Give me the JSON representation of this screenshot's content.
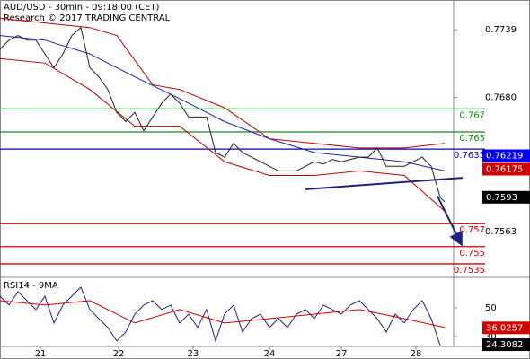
{
  "header": {
    "title": "AUD/USD - 30min - 09:18:00 (CET)",
    "subtitle": "Research © 2017 TRADING CENTRAL"
  },
  "chart_data": [
    {
      "type": "line",
      "xlim": [
        0,
        252.5
      ],
      "xticks": [
        {
          "value": 22.5,
          "label": "21"
        },
        {
          "value": 66,
          "label": "22"
        },
        {
          "value": 107.5,
          "label": "23"
        },
        {
          "value": 150,
          "label": "24"
        },
        {
          "value": 190,
          "label": "27"
        },
        {
          "value": 231.5,
          "label": "28"
        }
      ],
      "ylim": [
        0.7524,
        0.7765
      ],
      "yticks": [
        0.7739,
        {
          "value": 0.768,
          "label": "0.7680"
        },
        0.7563
      ],
      "series": [
        {
          "color": "#c00000",
          "x": [
            0,
            25,
            50,
            65,
            85,
            100,
            125,
            150,
            175,
            200,
            225,
            247.5
          ],
          "values": [
            0.7749,
            0.7745,
            0.7741,
            0.7734,
            0.7691,
            0.7687,
            0.7671,
            0.7644,
            0.764,
            0.7636,
            0.7636,
            0.764
          ]
        },
        {
          "color": "#c00000",
          "x": [
            0,
            25,
            50,
            75,
            100,
            125,
            150,
            175,
            200,
            225,
            247.5
          ],
          "values": [
            0.7714,
            0.771,
            0.7687,
            0.7655,
            0.7655,
            0.7624,
            0.7612,
            0.7612,
            0.7616,
            0.7612,
            0.7581
          ]
        },
        {
          "color": "#2020b0",
          "x": [
            0,
            25,
            50,
            75,
            100,
            125,
            150,
            175,
            200,
            225,
            247.5
          ],
          "values": [
            0.7734,
            0.773,
            0.7718,
            0.7698,
            0.7679,
            0.7659,
            0.7644,
            0.7632,
            0.7628,
            0.7624,
            0.7616
          ]
        },
        {
          "color": "#222222",
          "x": [
            0,
            5,
            10,
            15,
            20,
            25,
            30,
            35,
            40,
            45,
            50,
            55,
            60,
            65,
            70,
            75,
            80,
            85,
            90,
            95,
            100,
            105,
            110,
            115,
            120,
            125,
            130,
            135,
            140,
            145,
            150,
            155,
            160,
            165,
            170,
            175,
            180,
            185,
            190,
            195,
            200,
            205,
            210,
            215,
            220,
            225,
            230,
            235,
            240,
            245,
            247.5
          ],
          "values": [
            0.7722,
            0.773,
            0.7734,
            0.773,
            0.773,
            0.7718,
            0.7706,
            0.7718,
            0.7734,
            0.7741,
            0.7706,
            0.7698,
            0.7687,
            0.7667,
            0.7659,
            0.7667,
            0.7651,
            0.7663,
            0.7675,
            0.7683,
            0.7675,
            0.7663,
            0.7663,
            0.7663,
            0.7632,
            0.7628,
            0.764,
            0.7632,
            0.7628,
            0.7624,
            0.762,
            0.7616,
            0.7616,
            0.7616,
            0.762,
            0.7624,
            0.7622,
            0.7626,
            0.7624,
            0.7626,
            0.7628,
            0.7628,
            0.7636,
            0.762,
            0.762,
            0.762,
            0.7624,
            0.7628,
            0.762,
            0.7593,
            0.7589
          ]
        }
      ],
      "levels": [
        {
          "value": 0.767,
          "color": "#1a8a1a"
        },
        {
          "value": 0.765,
          "color": "#1a8a1a"
        },
        {
          "value": 0.7635,
          "color": "#0000dd"
        },
        {
          "value": 0.757,
          "color": "#d00000"
        },
        {
          "value": 0.755,
          "color": "#d00000"
        },
        {
          "value": 0.7535,
          "color": "#d00000"
        }
      ],
      "trendline": {
        "color": "#202080",
        "x": [
          170,
          257.5
        ],
        "values": [
          0.76,
          0.761
        ]
      },
      "arrow": {
        "color": "#202080",
        "x": [
          243.5,
          256.5
        ],
        "values": [
          0.7594,
          0.7553
        ]
      },
      "tags": [
        {
          "value": 0.76219,
          "color": "#0000ff"
        },
        {
          "value": 0.76175,
          "color": "#d00000"
        },
        {
          "value": 0.7593,
          "color": "#000000"
        }
      ]
    },
    {
      "type": "line",
      "title": "RSI14 - 9MA",
      "xlim": [
        0,
        252.5
      ],
      "ylim": [
        20.6,
        70.6
      ],
      "yticks": [
        50,
        30
      ],
      "series": [
        {
          "color": "#202080",
          "x": [
            0,
            5,
            10,
            15,
            20,
            25,
            30,
            35,
            40,
            45,
            50,
            55,
            60,
            65,
            70,
            75,
            80,
            85,
            90,
            95,
            100,
            105,
            110,
            115,
            120,
            125,
            130,
            135,
            140,
            145,
            150,
            155,
            160,
            165,
            170,
            175,
            180,
            185,
            190,
            195,
            200,
            205,
            210,
            215,
            220,
            225,
            230,
            235,
            240,
            245
          ],
          "values": [
            58.1,
            51.9,
            61.3,
            55,
            48.8,
            58.1,
            39.4,
            51.9,
            58.1,
            64.4,
            48.8,
            42.5,
            36.3,
            26.9,
            33.1,
            45.6,
            51.9,
            55,
            48.8,
            51.9,
            39.4,
            45.6,
            36.3,
            48.8,
            26.9,
            45.6,
            51.9,
            33.1,
            42.5,
            45.6,
            36.3,
            42.5,
            36.3,
            45.6,
            48.8,
            42.5,
            51.9,
            48.8,
            45.6,
            51.9,
            55,
            48.8,
            42.5,
            33.1,
            45.6,
            39.4,
            48.8,
            55,
            42.5,
            23.8
          ]
        },
        {
          "color": "#d00000",
          "x": [
            0,
            25,
            50,
            75,
            100,
            125,
            150,
            175,
            200,
            225,
            247.5
          ],
          "values": [
            55,
            51.9,
            55,
            39.4,
            48.8,
            39.4,
            42.5,
            45.6,
            48.8,
            42.5,
            36.3
          ]
        }
      ],
      "tags": [
        {
          "value": 36.0257,
          "color": "#d00000"
        },
        {
          "value": 24.3082,
          "color": "#000000"
        }
      ]
    }
  ]
}
